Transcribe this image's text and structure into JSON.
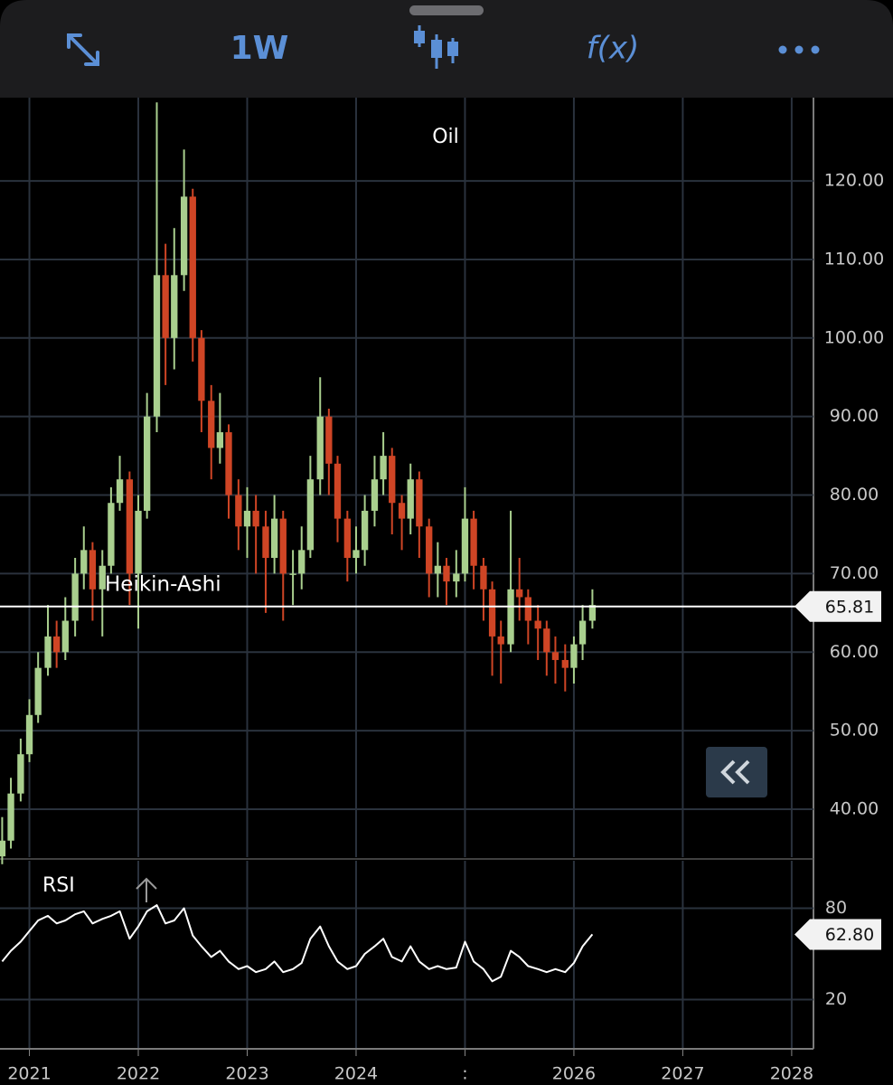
{
  "toolbar": {
    "interval": "1W",
    "functions": "f(x)"
  },
  "chart_data": [
    {
      "type": "candlestick",
      "title": "Oil",
      "annotation": "Heikin-Ashi",
      "x": [
        2020.75,
        2020.83,
        2020.92,
        2021.0,
        2021.08,
        2021.17,
        2021.25,
        2021.33,
        2021.42,
        2021.5,
        2021.58,
        2021.67,
        2021.75,
        2021.83,
        2021.92,
        2022.0,
        2022.08,
        2022.17,
        2022.25,
        2022.33,
        2022.42,
        2022.5,
        2022.58,
        2022.67,
        2022.75,
        2022.83,
        2022.92,
        2023.0,
        2023.08,
        2023.17,
        2023.25,
        2023.33,
        2023.42,
        2023.5,
        2023.58,
        2023.67,
        2023.75,
        2023.83,
        2023.92,
        2024.0,
        2024.08,
        2024.17,
        2024.25,
        2024.33,
        2024.42,
        2024.5,
        2024.58,
        2024.67,
        2024.75,
        2024.83,
        2024.92,
        2025.0,
        2025.08,
        2025.17,
        2025.25,
        2025.33,
        2025.42,
        2025.5,
        2025.58,
        2025.67,
        2025.75,
        2025.83,
        2025.92,
        2026.0,
        2026.08,
        2026.17
      ],
      "open": [
        34,
        36,
        42,
        47,
        52,
        58,
        62,
        60,
        64,
        70,
        73,
        68,
        71,
        79,
        82,
        70,
        78,
        90,
        108,
        100,
        108,
        118,
        100,
        92,
        86,
        88,
        80,
        76,
        78,
        76,
        72,
        77,
        70,
        70,
        73,
        82,
        90,
        84,
        77,
        72,
        73,
        78,
        82,
        85,
        79,
        77,
        82,
        76,
        70,
        71,
        69,
        70,
        77,
        71,
        68,
        62,
        61,
        68,
        67,
        64,
        63,
        60,
        59,
        58,
        61,
        64
      ],
      "high": [
        39,
        44,
        49,
        54,
        60,
        66,
        64,
        67,
        72,
        76,
        74,
        73,
        81,
        85,
        83,
        80,
        93,
        130,
        112,
        114,
        124,
        119,
        101,
        94,
        93,
        89,
        82,
        81,
        80,
        78,
        80,
        78,
        73,
        76,
        85,
        95,
        91,
        85,
        78,
        76,
        80,
        85,
        88,
        86,
        80,
        84,
        83,
        77,
        74,
        72,
        73,
        81,
        78,
        72,
        69,
        64,
        78,
        72,
        68,
        66,
        64,
        62,
        61,
        62,
        66,
        68
      ],
      "low": [
        33,
        35,
        41,
        46,
        51,
        57,
        58,
        59,
        62,
        68,
        64,
        62,
        70,
        78,
        66,
        63,
        77,
        88,
        94,
        96,
        106,
        97,
        88,
        82,
        84,
        77,
        73,
        72,
        70,
        65,
        70,
        64,
        66,
        68,
        72,
        80,
        80,
        74,
        69,
        70,
        71,
        76,
        80,
        75,
        73,
        75,
        72,
        67,
        67,
        66,
        67,
        69,
        68,
        64,
        57,
        56,
        60,
        64,
        61,
        59,
        57,
        56,
        55,
        56,
        59,
        63
      ],
      "close": [
        36,
        42,
        47,
        52,
        58,
        62,
        60,
        64,
        70,
        73,
        68,
        71,
        79,
        82,
        70,
        78,
        90,
        108,
        100,
        108,
        118,
        100,
        92,
        86,
        88,
        80,
        76,
        78,
        76,
        72,
        77,
        70,
        70,
        73,
        82,
        90,
        84,
        77,
        72,
        73,
        78,
        82,
        85,
        79,
        77,
        82,
        76,
        70,
        71,
        69,
        70,
        77,
        71,
        68,
        62,
        61,
        68,
        67,
        64,
        63,
        60,
        59,
        58,
        61,
        64,
        66
      ],
      "up_color": "#a9cf8e",
      "down_color": "#cf4525",
      "xlim": [
        2020.73,
        2028.2
      ],
      "xticks": [
        2021,
        2022,
        2023,
        2024,
        {
          "value": 2025,
          "label": ":"
        },
        2026,
        2027,
        2028
      ],
      "ylim": [
        33.9,
        130.6
      ],
      "yticks": [
        {
          "value": 40,
          "label": "40.00"
        },
        {
          "value": 50,
          "label": "50.00"
        },
        {
          "value": 60,
          "label": "60.00"
        },
        {
          "value": 70,
          "label": "70.00"
        },
        {
          "value": 80,
          "label": "80.00"
        },
        {
          "value": 90,
          "label": "90.00"
        },
        {
          "value": 100,
          "label": "100.00"
        },
        {
          "value": 110,
          "label": "110.00"
        },
        {
          "value": 120,
          "label": "120.00"
        }
      ],
      "grid": true,
      "last_price": 65.81
    },
    {
      "type": "line",
      "title": "RSI",
      "values": [
        45,
        52,
        58,
        65,
        72,
        75,
        70,
        72,
        76,
        78,
        70,
        73,
        75,
        78,
        60,
        68,
        78,
        82,
        70,
        72,
        80,
        62,
        55,
        48,
        52,
        45,
        40,
        42,
        38,
        40,
        45,
        38,
        40,
        44,
        60,
        68,
        55,
        45,
        40,
        42,
        50,
        55,
        60,
        48,
        45,
        55,
        45,
        40,
        42,
        40,
        41,
        58,
        45,
        40,
        32,
        35,
        52,
        48,
        42,
        40,
        38,
        40,
        38,
        44,
        55,
        62.8
      ],
      "color": "#ffffff",
      "ylim": [
        -12.4,
        111.2
      ],
      "yticks": [
        80,
        20
      ],
      "grid": true,
      "last_value": {
        "value": 62.8,
        "label": "62.80"
      }
    }
  ]
}
